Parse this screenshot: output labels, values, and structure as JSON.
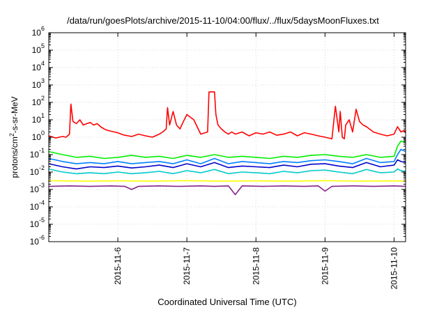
{
  "chart_data": {
    "type": "line",
    "title": "/data/run/goesPlots/archive/2015-11-10/04:00/flux/../flux/5daysMoonFluxes.txt",
    "xlabel": "Coordinated Universal Time (UTC)",
    "ylabel_parts": [
      "protons/cm",
      "2",
      "-s-sr-MeV"
    ],
    "yscale": "log",
    "ylim": [
      1e-06,
      1000000.0
    ],
    "y_ticks": [
      {
        "base": "10",
        "exp": "6"
      },
      {
        "base": "10",
        "exp": "5"
      },
      {
        "base": "10",
        "exp": "4"
      },
      {
        "base": "10",
        "exp": "3"
      },
      {
        "base": "10",
        "exp": "2"
      },
      {
        "base": "10",
        "exp": "1"
      },
      {
        "base": "10",
        "exp": "0"
      },
      {
        "base": "10",
        "exp": "-1"
      },
      {
        "base": "10",
        "exp": "-2"
      },
      {
        "base": "10",
        "exp": "-3"
      },
      {
        "base": "10",
        "exp": "-4"
      },
      {
        "base": "10",
        "exp": "-5"
      },
      {
        "base": "10",
        "exp": "-6"
      }
    ],
    "xlim": [
      "2015-11-05 00:00",
      "2015-11-10 04:00"
    ],
    "x_ticks": [
      "2015-11-6",
      "2015-11-7",
      "2015-11-8",
      "2015-11-9",
      "2015-11-10"
    ],
    "grid": true,
    "legend": "none",
    "series": [
      {
        "color": "#ff0000",
        "x": [
          0.0,
          0.1,
          0.2,
          0.25,
          0.3,
          0.32,
          0.35,
          0.4,
          0.45,
          0.5,
          0.55,
          0.6,
          0.65,
          0.7,
          0.75,
          0.8,
          0.85,
          0.9,
          0.95,
          1.0,
          1.05,
          1.1,
          1.15,
          1.2,
          1.3,
          1.4,
          1.5,
          1.6,
          1.65,
          1.7,
          1.72,
          1.75,
          1.8,
          1.85,
          1.9,
          1.95,
          2.0,
          2.1,
          2.2,
          2.3,
          2.32,
          2.35,
          2.4,
          2.42,
          2.45,
          2.5,
          2.55,
          2.6,
          2.65,
          2.7,
          2.8,
          2.9,
          3.0,
          3.1,
          3.2,
          3.3,
          3.4,
          3.5,
          3.6,
          3.7,
          3.8,
          3.9,
          4.0,
          4.1,
          4.15,
          4.2,
          4.22,
          4.25,
          4.28,
          4.3,
          4.35,
          4.4,
          4.45,
          4.5,
          4.55,
          4.6,
          4.7,
          4.8,
          4.9,
          5.0,
          5.05,
          5.1,
          5.15,
          5.167
        ],
        "y": [
          1.2,
          0.9,
          1.1,
          1.0,
          1.5,
          80,
          8,
          6,
          10,
          5,
          6,
          7,
          5,
          6,
          4,
          3,
          2.5,
          2.2,
          2,
          1.8,
          1.5,
          1.3,
          1.2,
          1.1,
          1.5,
          1.2,
          1.0,
          1.5,
          2,
          3,
          50,
          5,
          30,
          5,
          3,
          8,
          20,
          10,
          1.5,
          2,
          400,
          400,
          400,
          20,
          5,
          3,
          2,
          1.5,
          2,
          1.5,
          2,
          1.2,
          1.8,
          1.5,
          2,
          1.3,
          1.5,
          2,
          1.2,
          1.8,
          1.5,
          1.2,
          1.0,
          0.8,
          60,
          2,
          30,
          1,
          0.8,
          5,
          10,
          2,
          40,
          8,
          5,
          4,
          2,
          1.5,
          1.2,
          1.5,
          4,
          2,
          2.5,
          1.8
        ]
      },
      {
        "color": "#00ee00",
        "x": [
          0,
          0.2,
          0.4,
          0.6,
          0.8,
          1.0,
          1.2,
          1.4,
          1.6,
          1.8,
          2.0,
          2.2,
          2.4,
          2.6,
          2.8,
          3.0,
          3.2,
          3.4,
          3.6,
          3.8,
          4.0,
          4.2,
          4.4,
          4.6,
          4.8,
          5.0,
          5.05,
          5.1,
          5.167
        ],
        "y": [
          0.15,
          0.1,
          0.07,
          0.08,
          0.06,
          0.07,
          0.09,
          0.07,
          0.08,
          0.06,
          0.09,
          0.07,
          0.1,
          0.07,
          0.08,
          0.07,
          0.06,
          0.08,
          0.07,
          0.09,
          0.1,
          0.08,
          0.07,
          0.1,
          0.07,
          0.08,
          0.3,
          0.6,
          0.5
        ]
      },
      {
        "color": "#0080ff",
        "x": [
          0,
          0.2,
          0.4,
          0.6,
          0.8,
          1.0,
          1.2,
          1.4,
          1.6,
          1.8,
          2.0,
          2.2,
          2.4,
          2.6,
          2.8,
          3.0,
          3.2,
          3.4,
          3.6,
          3.8,
          4.0,
          4.2,
          4.4,
          4.6,
          4.8,
          5.0,
          5.05,
          5.1,
          5.167
        ],
        "y": [
          0.06,
          0.04,
          0.03,
          0.035,
          0.03,
          0.04,
          0.03,
          0.035,
          0.04,
          0.03,
          0.05,
          0.03,
          0.06,
          0.03,
          0.04,
          0.035,
          0.03,
          0.04,
          0.035,
          0.045,
          0.05,
          0.04,
          0.03,
          0.06,
          0.035,
          0.04,
          0.1,
          0.2,
          0.15
        ]
      },
      {
        "color": "#0000cc",
        "x": [
          0,
          0.2,
          0.4,
          0.6,
          0.8,
          1.0,
          1.2,
          1.4,
          1.6,
          1.8,
          2.0,
          2.2,
          2.4,
          2.6,
          2.8,
          3.0,
          3.2,
          3.4,
          3.6,
          3.8,
          4.0,
          4.2,
          4.4,
          4.6,
          4.8,
          5.0,
          5.05,
          5.1,
          5.167
        ],
        "y": [
          0.03,
          0.02,
          0.015,
          0.02,
          0.018,
          0.022,
          0.017,
          0.02,
          0.025,
          0.018,
          0.03,
          0.02,
          0.035,
          0.018,
          0.022,
          0.02,
          0.018,
          0.025,
          0.02,
          0.028,
          0.03,
          0.022,
          0.018,
          0.035,
          0.02,
          0.025,
          0.05,
          0.04,
          0.035
        ]
      },
      {
        "color": "#00cccc",
        "x": [
          0,
          0.2,
          0.4,
          0.6,
          0.8,
          1.0,
          1.2,
          1.4,
          1.6,
          1.8,
          2.0,
          2.2,
          2.4,
          2.6,
          2.8,
          3.0,
          3.2,
          3.4,
          3.6,
          3.8,
          4.0,
          4.2,
          4.4,
          4.6,
          4.8,
          5.0,
          5.05,
          5.1,
          5.167
        ],
        "y": [
          0.015,
          0.01,
          0.008,
          0.009,
          0.008,
          0.01,
          0.008,
          0.009,
          0.011,
          0.008,
          0.012,
          0.009,
          0.014,
          0.008,
          0.01,
          0.009,
          0.008,
          0.011,
          0.009,
          0.012,
          0.013,
          0.01,
          0.008,
          0.014,
          0.009,
          0.01,
          0.015,
          0.012,
          0.011
        ]
      },
      {
        "color": "#ffff00",
        "x": [
          0,
          0.5,
          1.0,
          1.5,
          2.0,
          2.5,
          3.0,
          3.5,
          4.0,
          4.5,
          5.0,
          5.167
        ],
        "y": [
          0.0032,
          0.003,
          0.0031,
          0.003,
          0.0032,
          0.003,
          0.0031,
          0.003,
          0.0032,
          0.003,
          0.0031,
          0.003
        ]
      },
      {
        "color": "#882288",
        "x": [
          0,
          0.3,
          0.6,
          0.9,
          1.1,
          1.2,
          1.3,
          1.6,
          1.9,
          2.2,
          2.4,
          2.6,
          2.7,
          2.8,
          3.1,
          3.4,
          3.7,
          3.9,
          4.0,
          4.1,
          4.4,
          4.7,
          5.0,
          5.167
        ],
        "y": [
          0.0015,
          0.0016,
          0.0015,
          0.0016,
          0.0015,
          0.001,
          0.0015,
          0.0016,
          0.0015,
          0.0016,
          0.0015,
          0.0016,
          0.0005,
          0.0016,
          0.0015,
          0.0016,
          0.0015,
          0.0016,
          0.0008,
          0.0015,
          0.0016,
          0.0015,
          0.0016,
          0.0015
        ]
      }
    ]
  }
}
